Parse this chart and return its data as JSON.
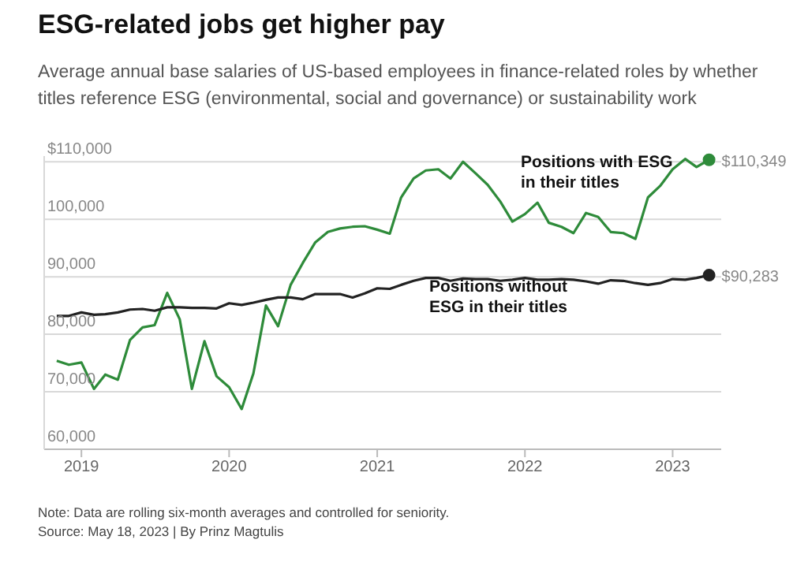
{
  "chart_data": {
    "type": "line",
    "title": "ESG-related jobs get higher pay",
    "subtitle": "Average annual base salaries of US-based employees in finance-related roles by whether titles reference ESG (environmental, social and governance) or sustainability work",
    "x": [
      "2018-11",
      "2018-12",
      "2019-01",
      "2019-02",
      "2019-03",
      "2019-04",
      "2019-05",
      "2019-06",
      "2019-07",
      "2019-08",
      "2019-09",
      "2019-10",
      "2019-11",
      "2019-12",
      "2020-01",
      "2020-02",
      "2020-03",
      "2020-04",
      "2020-05",
      "2020-06",
      "2020-07",
      "2020-08",
      "2020-09",
      "2020-10",
      "2020-11",
      "2020-12",
      "2021-01",
      "2021-02",
      "2021-03",
      "2021-04",
      "2021-05",
      "2021-06",
      "2021-07",
      "2021-08",
      "2021-09",
      "2021-10",
      "2021-11",
      "2021-12",
      "2022-01",
      "2022-02",
      "2022-03",
      "2022-04",
      "2022-05",
      "2022-06",
      "2022-07",
      "2022-08",
      "2022-09",
      "2022-10",
      "2022-11",
      "2022-12",
      "2023-01",
      "2023-02",
      "2023-03",
      "2023-04"
    ],
    "series": [
      {
        "name": "Positions with ESG in their titles",
        "color": "#2e8b3a",
        "values": [
          75400,
          74700,
          75100,
          70500,
          73000,
          72100,
          79000,
          81200,
          81600,
          87200,
          82600,
          70500,
          78800,
          72700,
          70800,
          67000,
          73200,
          85000,
          81400,
          88600,
          92400,
          96000,
          97800,
          98400,
          98700,
          98800,
          98200,
          97500,
          103800,
          107100,
          108500,
          108700,
          107100,
          110000,
          108000,
          106000,
          103100,
          99600,
          100900,
          102900,
          99400,
          98700,
          97600,
          101100,
          100400,
          97800,
          97600,
          96600,
          103800,
          105800,
          108700,
          110500,
          109100,
          110349
        ],
        "value_labels": [
          null,
          null,
          null,
          null,
          null,
          null,
          null,
          null,
          null,
          null,
          null,
          null,
          null,
          null,
          null,
          null,
          null,
          null,
          null,
          null,
          null,
          null,
          null,
          null,
          null,
          null,
          null,
          null,
          null,
          null,
          null,
          null,
          null,
          null,
          null,
          null,
          null,
          null,
          null,
          null,
          null,
          null,
          null,
          null,
          null,
          null,
          null,
          null,
          null,
          null,
          null,
          null,
          null,
          "$110,349"
        ]
      },
      {
        "name": "Positions without ESG in their titles",
        "color": "#222222",
        "values": [
          83200,
          83200,
          83800,
          83400,
          83500,
          83800,
          84300,
          84400,
          84100,
          84700,
          84700,
          84600,
          84600,
          84500,
          85400,
          85100,
          85500,
          86000,
          86400,
          86400,
          86100,
          87000,
          87000,
          87000,
          86400,
          87100,
          88000,
          87900,
          88600,
          89300,
          89800,
          89800,
          89300,
          89700,
          89600,
          89600,
          89300,
          89500,
          89800,
          89500,
          89500,
          89600,
          89500,
          89200,
          88800,
          89400,
          89300,
          88900,
          88600,
          88900,
          89600,
          89500,
          89800,
          90283
        ],
        "value_labels": [
          null,
          null,
          null,
          null,
          null,
          null,
          null,
          null,
          null,
          null,
          null,
          null,
          null,
          null,
          null,
          null,
          null,
          null,
          null,
          null,
          null,
          null,
          null,
          null,
          null,
          null,
          null,
          null,
          null,
          null,
          null,
          null,
          null,
          null,
          null,
          null,
          null,
          null,
          null,
          null,
          null,
          null,
          null,
          null,
          null,
          null,
          null,
          null,
          null,
          null,
          null,
          null,
          null,
          "$90,283"
        ]
      }
    ],
    "xlim": [
      "2018-10",
      "2023-05"
    ],
    "xticks": [
      {
        "value": "2019-01",
        "label": "2019"
      },
      {
        "value": "2020-01",
        "label": "2020"
      },
      {
        "value": "2021-01",
        "label": "2021"
      },
      {
        "value": "2022-01",
        "label": "2022"
      },
      {
        "value": "2023-01",
        "label": "2023"
      }
    ],
    "ylim": [
      60000,
      111000
    ],
    "yticks": [
      {
        "value": 60000,
        "label": "60,000"
      },
      {
        "value": 70000,
        "label": "70,000"
      },
      {
        "value": 80000,
        "label": "80,000"
      },
      {
        "value": 90000,
        "label": "90,000"
      },
      {
        "value": 100000,
        "label": "100,000"
      },
      {
        "value": 110000,
        "label": "$110,000"
      }
    ],
    "grid": "y",
    "legend": false,
    "marker": "none",
    "line_style": "solid",
    "annotations": [
      "Note: Data are rolling six-month averages and controlled for seniority.",
      "Source: May 18, 2023 | By Prinz Magtulis"
    ]
  }
}
